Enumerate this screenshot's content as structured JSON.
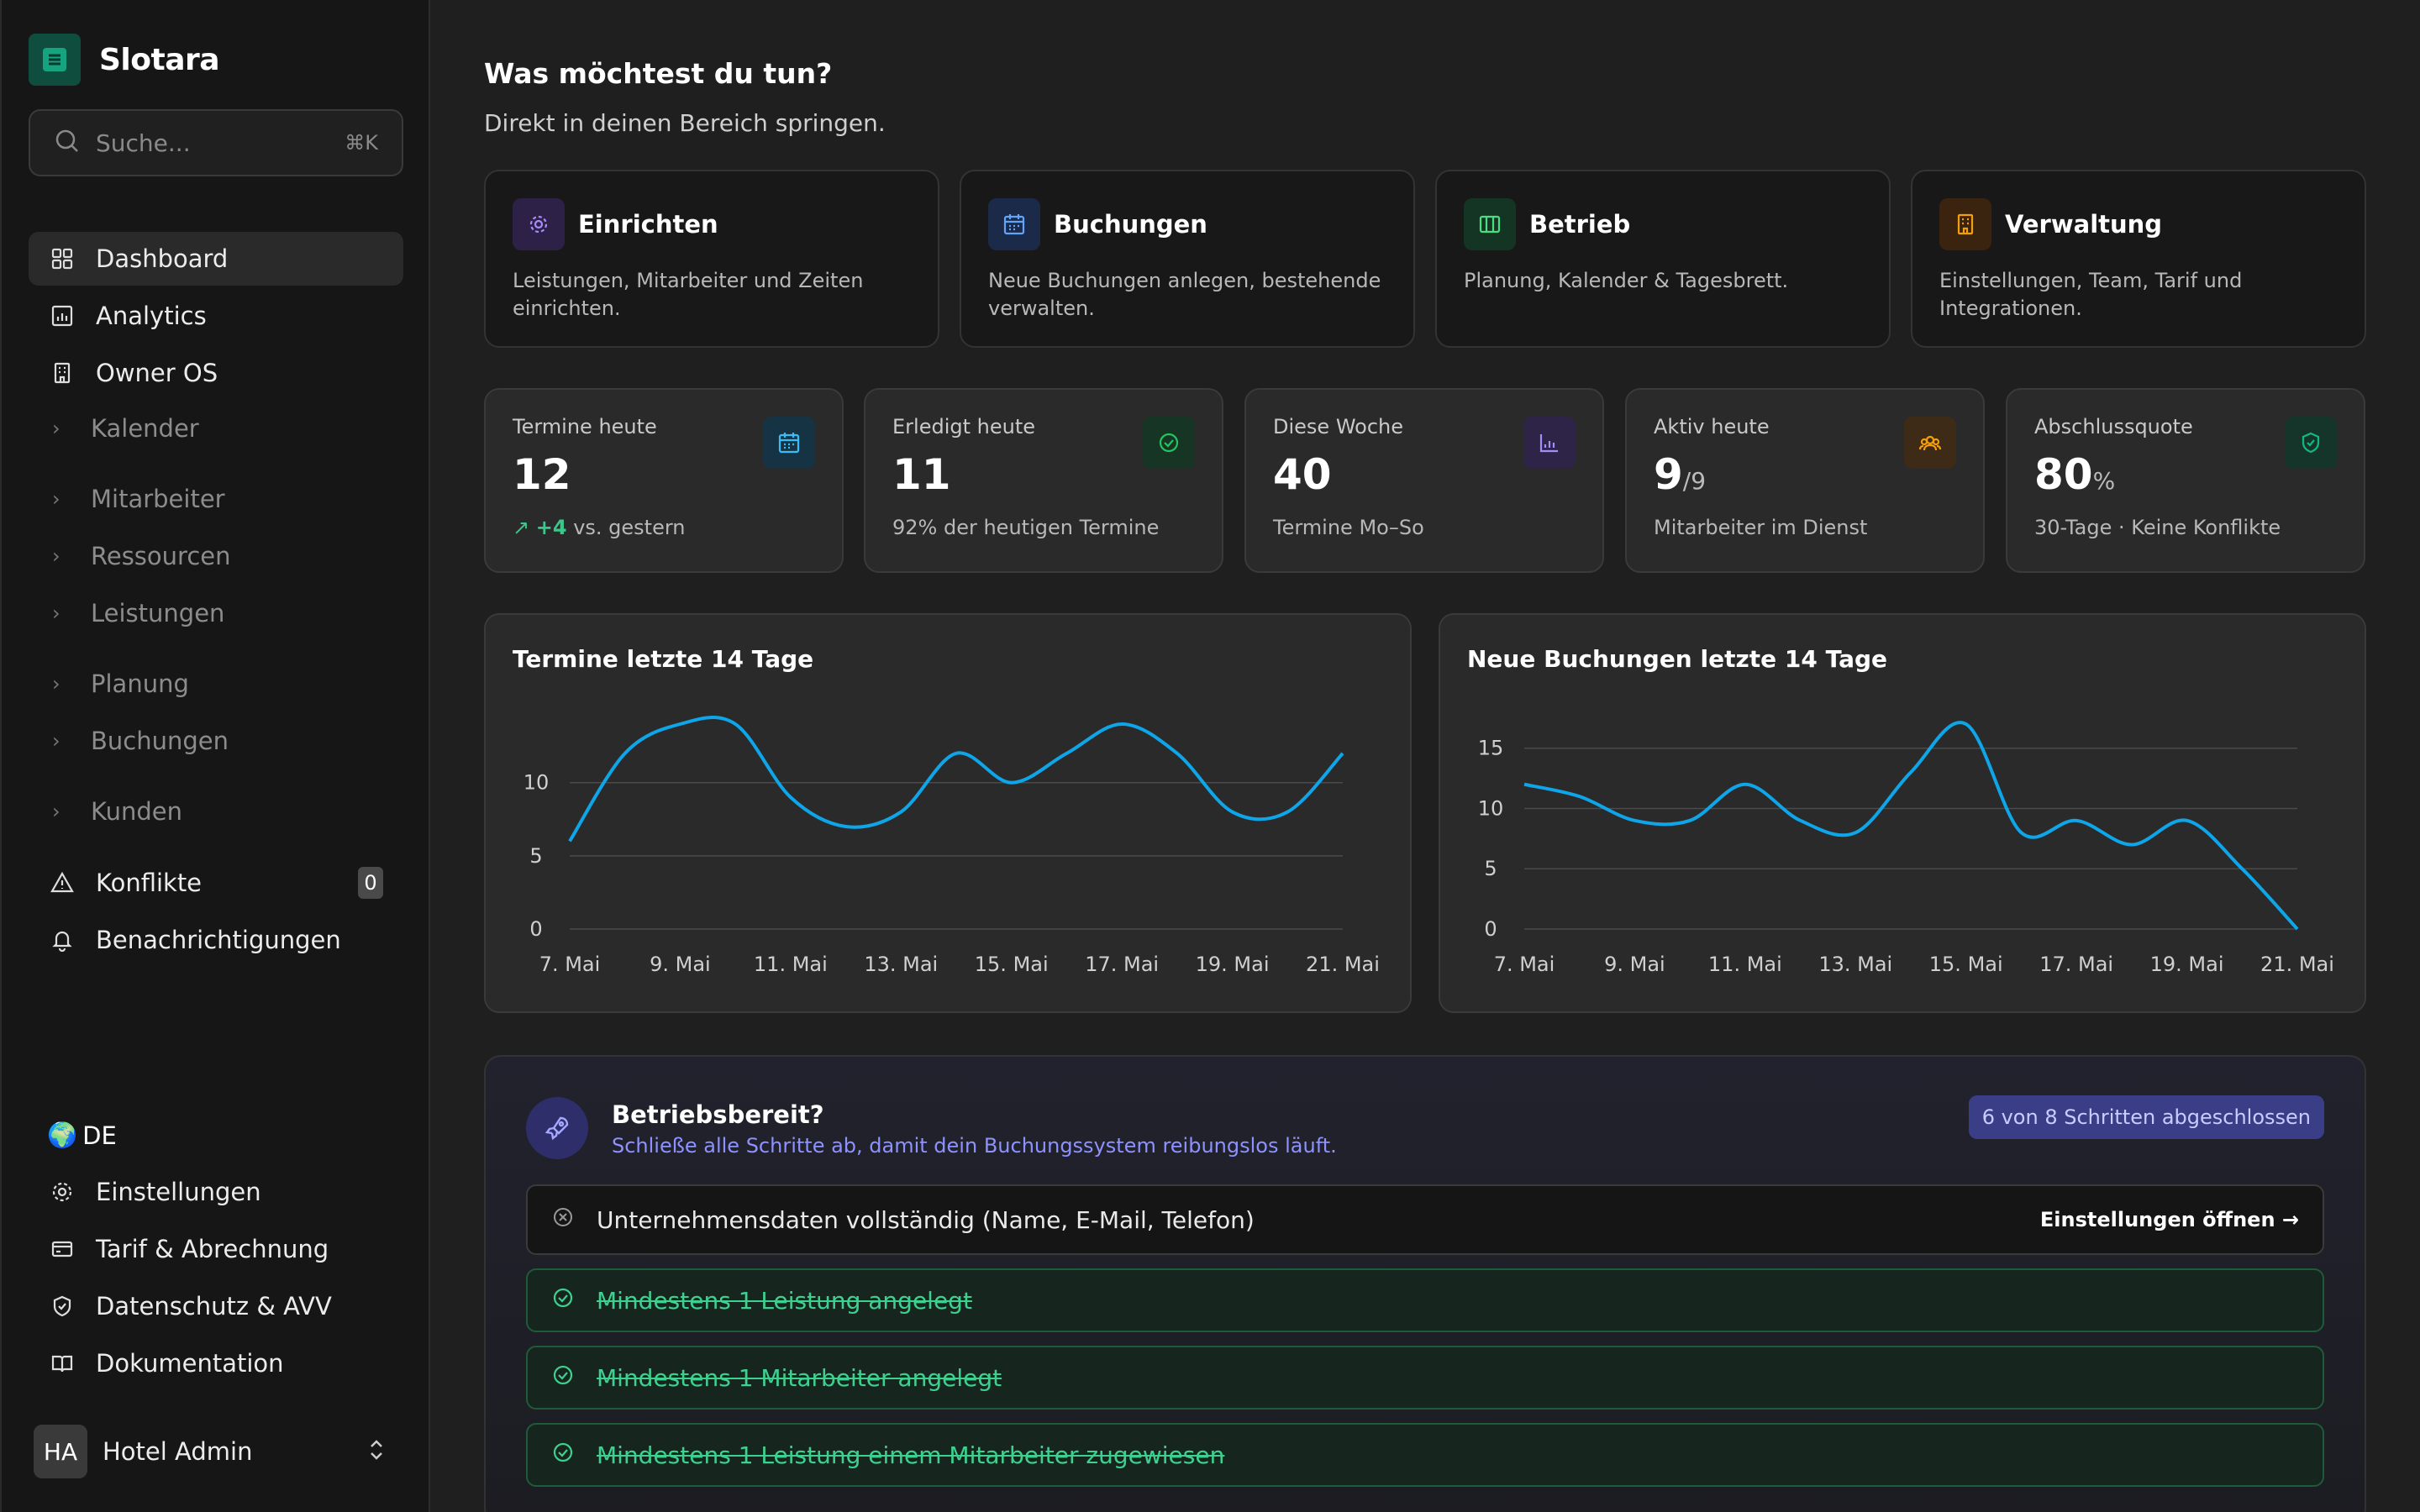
{
  "app": {
    "name": "Slotara"
  },
  "search": {
    "placeholder": "Suche...",
    "shortcut": "⌘K"
  },
  "nav": {
    "dashboard": "Dashboard",
    "analytics": "Analytics",
    "owner_os": "Owner OS",
    "kalender": "Kalender",
    "mitarbeiter": "Mitarbeiter",
    "ressourcen": "Ressourcen",
    "leistungen": "Leistungen",
    "planung": "Planung",
    "buchungen": "Buchungen",
    "kunden": "Kunden",
    "konflikte": "Konflikte",
    "konflikte_count": "0",
    "benachrichtigungen": "Benachrichtigungen"
  },
  "footer_nav": {
    "language": "DE",
    "einstellungen": "Einstellungen",
    "tarif": "Tarif & Abrechnung",
    "datenschutz": "Datenschutz & AVV",
    "dokumentation": "Dokumentation"
  },
  "user": {
    "initials": "HA",
    "name": "Hotel Admin"
  },
  "header": {
    "title": "Was möchtest du tun?",
    "subtitle": "Direkt in deinen Bereich springen."
  },
  "quick_actions": [
    {
      "title": "Einrichten",
      "desc": "Leistungen, Mitarbeiter und Zeiten einrichten.",
      "color": "#8b5cf6"
    },
    {
      "title": "Buchungen",
      "desc": "Neue Buchungen anlegen, bestehende verwalten.",
      "color": "#3b82f6"
    },
    {
      "title": "Betrieb",
      "desc": "Planung, Kalender & Tagesbrett.",
      "color": "#22c55e"
    },
    {
      "title": "Verwaltung",
      "desc": "Einstellungen, Team, Tarif und Integrationen.",
      "color": "#f59e0b"
    }
  ],
  "stats": [
    {
      "label": "Termine heute",
      "value": "12",
      "unit": "",
      "delta": "+4",
      "sub": "vs. gestern",
      "color": "#0ea5e9"
    },
    {
      "label": "Erledigt heute",
      "value": "11",
      "unit": "",
      "sub": "92% der heutigen Termine",
      "color": "#22c55e"
    },
    {
      "label": "Diese Woche",
      "value": "40",
      "unit": "",
      "sub": "Termine Mo–So",
      "color": "#8b5cf6"
    },
    {
      "label": "Aktiv heute",
      "value": "9",
      "unit": "/9",
      "sub": "Mitarbeiter im Dienst",
      "color": "#f59e0b"
    },
    {
      "label": "Abschlussquote",
      "value": "80",
      "unit": "%",
      "sub": "30-Tage · Keine Konflikte",
      "color": "#10b981"
    }
  ],
  "chart_data": [
    {
      "type": "line",
      "title": "Termine letzte 14 Tage",
      "x": [
        "7. Mai",
        "8. Mai",
        "9. Mai",
        "10. Mai",
        "11. Mai",
        "12. Mai",
        "13. Mai",
        "14. Mai",
        "15. Mai",
        "16. Mai",
        "17. Mai",
        "18. Mai",
        "19. Mai",
        "20. Mai",
        "21. Mai"
      ],
      "xticks": [
        "7. Mai",
        "9. Mai",
        "11. Mai",
        "13. Mai",
        "15. Mai",
        "17. Mai",
        "19. Mai",
        "21. Mai"
      ],
      "values": [
        6,
        12,
        14,
        14,
        9,
        7,
        8,
        12,
        10,
        12,
        14,
        12,
        8,
        8,
        12
      ],
      "yticks": [
        0,
        5,
        10
      ],
      "ylim": [
        0,
        14
      ],
      "color": "#0ea5e9"
    },
    {
      "type": "line",
      "title": "Neue Buchungen letzte 14 Tage",
      "x": [
        "7. Mai",
        "8. Mai",
        "9. Mai",
        "10. Mai",
        "11. Mai",
        "12. Mai",
        "13. Mai",
        "14. Mai",
        "15. Mai",
        "16. Mai",
        "17. Mai",
        "18. Mai",
        "19. Mai",
        "20. Mai",
        "21. Mai"
      ],
      "xticks": [
        "7. Mai",
        "9. Mai",
        "11. Mai",
        "13. Mai",
        "15. Mai",
        "17. Mai",
        "19. Mai",
        "21. Mai"
      ],
      "values": [
        12,
        11,
        9,
        9,
        12,
        9,
        8,
        13,
        17,
        8,
        9,
        7,
        9,
        5,
        0
      ],
      "yticks": [
        0,
        5,
        10,
        15
      ],
      "ylim": [
        0,
        17
      ],
      "color": "#0ea5e9"
    }
  ],
  "readiness": {
    "title": "Betriebsbereit?",
    "subtitle": "Schließe alle Schritte ab, damit dein Buchungssystem reibungslos läuft.",
    "badge": "6 von 8 Schritten abgeschlossen",
    "steps": [
      {
        "text": "Unternehmensdaten vollständig (Name, E-Mail, Telefon)",
        "done": false,
        "action": "Einstellungen öffnen →"
      },
      {
        "text": "Mindestens 1 Leistung angelegt",
        "done": true
      },
      {
        "text": "Mindestens 1 Mitarbeiter angelegt",
        "done": true
      },
      {
        "text": "Mindestens 1 Leistung einem Mitarbeiter zugewiesen",
        "done": true
      }
    ]
  }
}
